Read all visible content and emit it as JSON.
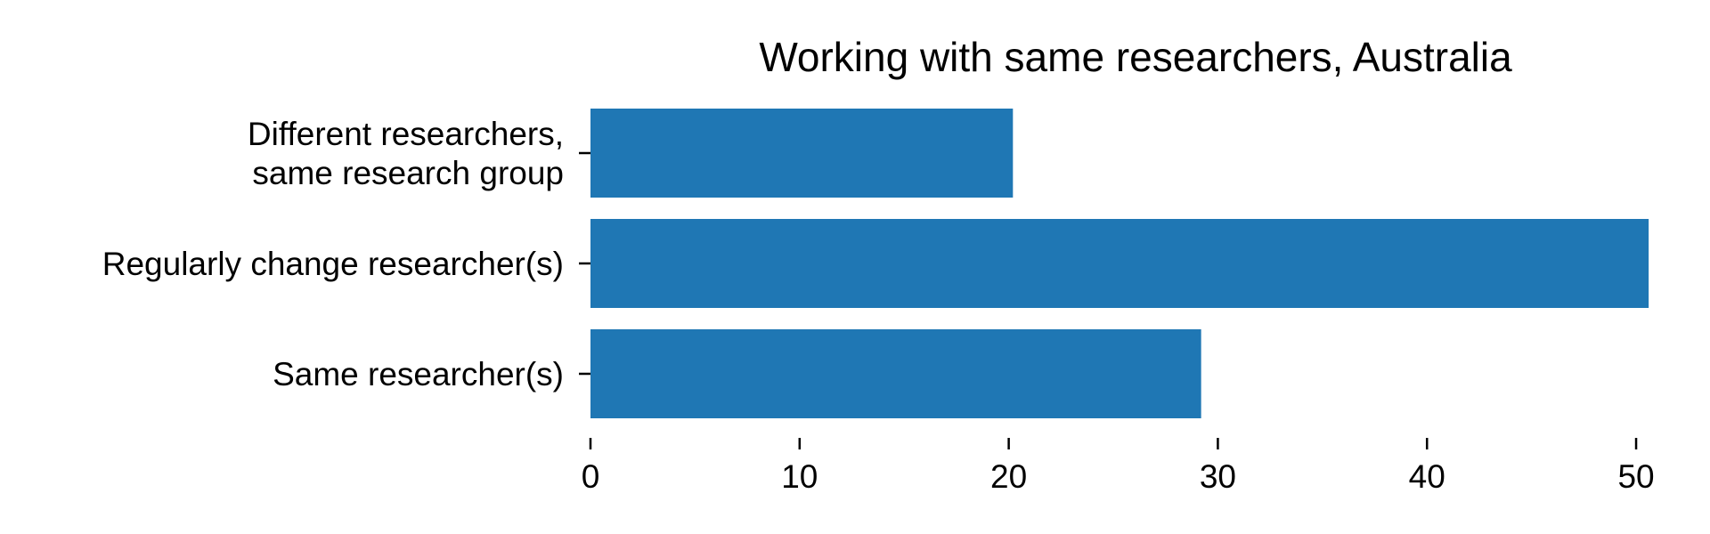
{
  "chart_data": {
    "type": "bar",
    "orientation": "horizontal",
    "title": "Working with same researchers, Australia",
    "xlabel": "",
    "ylabel": "",
    "categories": [
      [
        "Same researcher(s)"
      ],
      [
        "Regularly change researcher(s)"
      ],
      [
        "Different researchers,",
        "same research group"
      ]
    ],
    "values": [
      29.2,
      50.6,
      20.2
    ],
    "xlim": [
      0,
      52
    ],
    "xticks": [
      0,
      10,
      20,
      30,
      40,
      50
    ],
    "xtick_labels": [
      "0",
      "10",
      "20",
      "30",
      "40",
      "50"
    ],
    "grid": false,
    "legend": "none",
    "bar_color": "#1f77b4"
  }
}
